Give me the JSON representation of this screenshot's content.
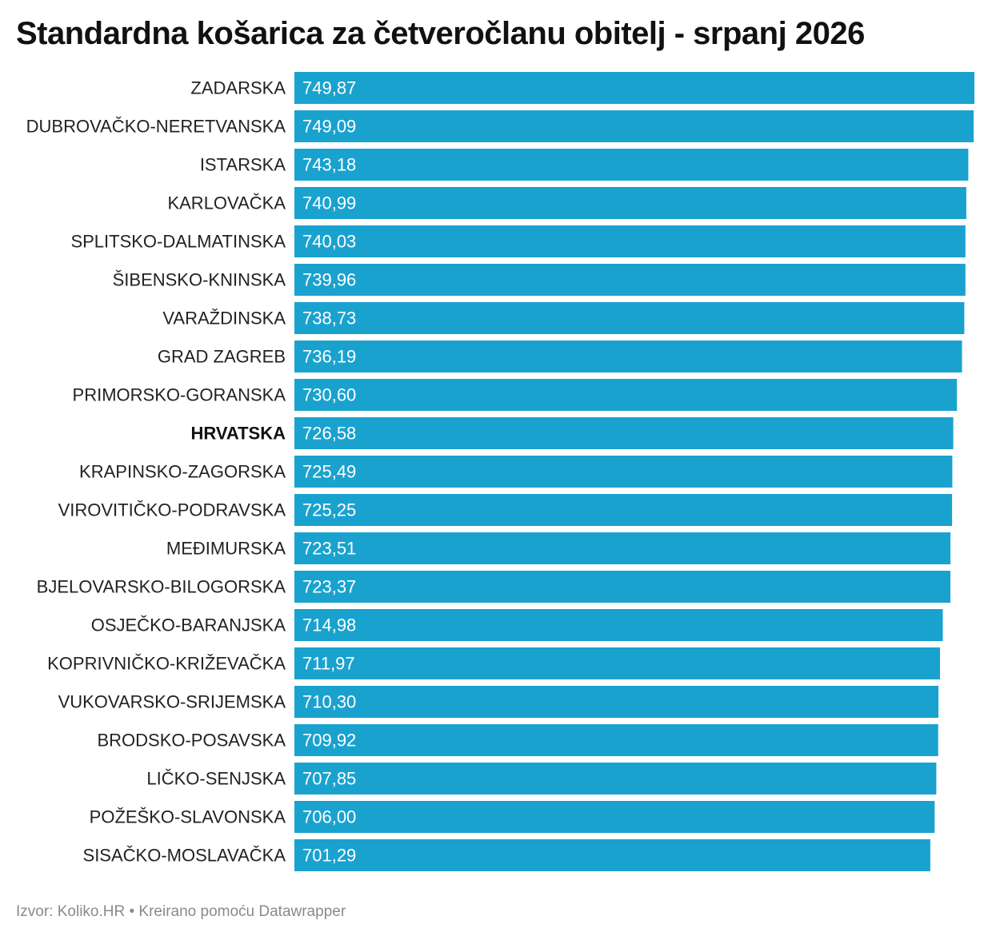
{
  "title": "Standardna košarica za četveročlanu obitelj - srpanj 2026",
  "source": "Izvor: Koliko.HR • Kreirano pomoću Datawrapper",
  "colors": {
    "bar": "#1aa2cf",
    "value_text": "#ffffff",
    "label_text": "#222222"
  },
  "chart_data": {
    "type": "bar",
    "orientation": "horizontal",
    "title": "Standardna košarica za četveročlanu obitelj - srpanj 2026",
    "xlabel": "",
    "ylabel": "",
    "grid": false,
    "legend": "none",
    "xlim": [
      0,
      749.87
    ],
    "highlight_category": "HRVATSKA",
    "categories": [
      "ZADARSKA",
      "DUBROVAČKO-NERETVANSKA",
      "ISTARSKA",
      "KARLOVAČKA",
      "SPLITSKO-DALMATINSKA",
      "ŠIBENSKO-KNINSKA",
      "VARAŽDINSKA",
      "GRAD ZAGREB",
      "PRIMORSKO-GORANSKA",
      "HRVATSKA",
      "KRAPINSKO-ZAGORSKA",
      "VIROVITIČKO-PODRAVSKA",
      "MEĐIMURSKA",
      "BJELOVARSKO-BILOGORSKA",
      "OSJEČKO-BARANJSKA",
      "KOPRIVNIČKO-KRIŽEVAČKA",
      "VUKOVARSKO-SRIJEMSKA",
      "BRODSKO-POSAVSKA",
      "LIČKO-SENJSKA",
      "POŽEŠKO-SLAVONSKA",
      "SISAČKO-MOSLAVAČKA"
    ],
    "values": [
      749.87,
      749.09,
      743.18,
      740.99,
      740.03,
      739.96,
      738.73,
      736.19,
      730.6,
      726.58,
      725.49,
      725.25,
      723.51,
      723.37,
      714.98,
      711.97,
      710.3,
      709.92,
      707.85,
      706.0,
      701.29
    ],
    "value_labels": [
      "749,87",
      "749,09",
      "743,18",
      "740,99",
      "740,03",
      "739,96",
      "738,73",
      "736,19",
      "730,60",
      "726,58",
      "725,49",
      "725,25",
      "723,51",
      "723,37",
      "714,98",
      "711,97",
      "710,30",
      "709,92",
      "707,85",
      "706,00",
      "701,29"
    ]
  }
}
